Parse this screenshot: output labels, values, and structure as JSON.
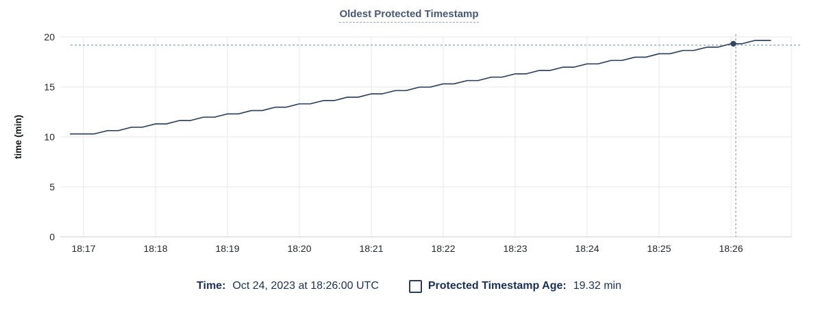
{
  "title": "Oldest Protected Timestamp",
  "legend": {
    "time_label": "Time:",
    "time_value": "Oct 24, 2023 at 18:26:00 UTC",
    "series_label": "Protected Timestamp Age:",
    "series_value": "19.32 min"
  },
  "colors": {
    "line": "#33455c",
    "title_text": "#475872",
    "legend_text": "#1b3051",
    "grid": "#eceef0",
    "axis_line": "#d9dde1",
    "tick_text": "#23282e",
    "crosshair": "#8fa9b8",
    "marker": "#33455c"
  },
  "chart_data": {
    "type": "line",
    "title": "Oldest Protected Timestamp",
    "xlabel": "",
    "ylabel": "time (min)",
    "ylim": [
      0,
      20
    ],
    "y_ticks": [
      0,
      5,
      10,
      15,
      20
    ],
    "x_ticks": [
      "18:17",
      "18:18",
      "18:19",
      "18:20",
      "18:21",
      "18:22",
      "18:23",
      "18:24",
      "18:25",
      "18:26"
    ],
    "x_tick_interval_seconds": 60,
    "grid": true,
    "legend_position": "bottom",
    "series": [
      {
        "name": "Protected Timestamp Age",
        "unit": "min",
        "style": "staircase",
        "points_t_seconds_vs_min": [
          [
            -11,
            10.3
          ],
          [
            9,
            10.3
          ],
          [
            20,
            10.63
          ],
          [
            29,
            10.63
          ],
          [
            40,
            10.97
          ],
          [
            49,
            10.97
          ],
          [
            60,
            11.3
          ],
          [
            69,
            11.3
          ],
          [
            80,
            11.64
          ],
          [
            89,
            11.64
          ],
          [
            100,
            11.97
          ],
          [
            109,
            11.97
          ],
          [
            120,
            12.3
          ],
          [
            129,
            12.3
          ],
          [
            140,
            12.64
          ],
          [
            149,
            12.64
          ],
          [
            160,
            12.97
          ],
          [
            169,
            12.97
          ],
          [
            180,
            13.31
          ],
          [
            189,
            13.31
          ],
          [
            200,
            13.64
          ],
          [
            209,
            13.64
          ],
          [
            220,
            13.97
          ],
          [
            229,
            13.97
          ],
          [
            240,
            14.31
          ],
          [
            249,
            14.31
          ],
          [
            260,
            14.64
          ],
          [
            269,
            14.64
          ],
          [
            280,
            14.98
          ],
          [
            289,
            14.98
          ],
          [
            300,
            15.31
          ],
          [
            309,
            15.31
          ],
          [
            320,
            15.64
          ],
          [
            329,
            15.64
          ],
          [
            340,
            15.98
          ],
          [
            349,
            15.98
          ],
          [
            360,
            16.31
          ],
          [
            369,
            16.31
          ],
          [
            380,
            16.65
          ],
          [
            389,
            16.65
          ],
          [
            400,
            16.98
          ],
          [
            409,
            16.98
          ],
          [
            420,
            17.31
          ],
          [
            429,
            17.31
          ],
          [
            440,
            17.65
          ],
          [
            449,
            17.65
          ],
          [
            460,
            17.98
          ],
          [
            469,
            17.98
          ],
          [
            480,
            18.32
          ],
          [
            489,
            18.32
          ],
          [
            500,
            18.65
          ],
          [
            509,
            18.65
          ],
          [
            520,
            18.98
          ],
          [
            529,
            18.98
          ],
          [
            540,
            19.32
          ],
          [
            549,
            19.32
          ],
          [
            560,
            19.65
          ],
          [
            573,
            19.65
          ]
        ]
      }
    ],
    "highlight_point": {
      "time": "18:26:00",
      "t_seconds": 542,
      "value": 19.32
    },
    "crosshair": {
      "x_t_seconds": 544,
      "y_value": 19.32
    }
  }
}
